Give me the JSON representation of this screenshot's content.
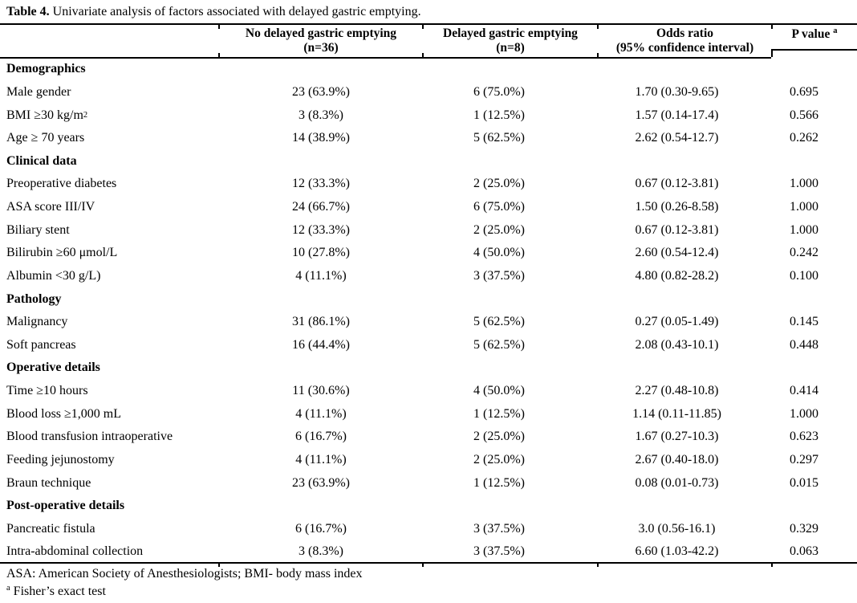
{
  "title": {
    "prefix": "Table 4.",
    "text": " Univariate analysis of factors associated with delayed gastric emptying."
  },
  "table": {
    "columns": [
      {
        "line1": "",
        "line2": ""
      },
      {
        "line1": "No delayed gastric emptying",
        "line2": "(n=36)"
      },
      {
        "line1": "Delayed gastric emptying",
        "line2": "(n=8)"
      },
      {
        "line1": "Odds ratio",
        "line2": "(95% confidence interval)"
      },
      {
        "label": "P value",
        "sup": "a"
      }
    ],
    "rows": [
      {
        "type": "section",
        "label": "Demographics"
      },
      {
        "type": "data",
        "label": "Male gender",
        "no_dge": "23 (63.9%)",
        "dge": "6 (75.0%)",
        "odds_ratio": "1.70 (0.30-9.65)",
        "p_value": "0.695"
      },
      {
        "type": "data",
        "label": "BMI ≥30 kg/m",
        "sup": "2",
        "no_dge": "3 (8.3%)",
        "dge": "1 (12.5%)",
        "odds_ratio": "1.57 (0.14-17.4)",
        "p_value": "0.566"
      },
      {
        "type": "data",
        "label": "Age ≥ 70 years",
        "no_dge": "14 (38.9%)",
        "dge": "5 (62.5%)",
        "odds_ratio": "2.62 (0.54-12.7)",
        "p_value": "0.262"
      },
      {
        "type": "section",
        "label": "Clinical data"
      },
      {
        "type": "data",
        "label": "Preoperative diabetes",
        "no_dge": "12 (33.3%)",
        "dge": "2 (25.0%)",
        "odds_ratio": "0.67 (0.12-3.81)",
        "p_value": "1.000"
      },
      {
        "type": "data",
        "label": "ASA score III/IV",
        "no_dge": "24 (66.7%)",
        "dge": "6 (75.0%)",
        "odds_ratio": "1.50 (0.26-8.58)",
        "p_value": "1.000"
      },
      {
        "type": "data",
        "label": "Biliary stent",
        "no_dge": "12 (33.3%)",
        "dge": "2 (25.0%)",
        "odds_ratio": "0.67 (0.12-3.81)",
        "p_value": "1.000"
      },
      {
        "type": "data",
        "label": "Bilirubin ≥60 μmol/L",
        "no_dge": "10 (27.8%)",
        "dge": "4 (50.0%)",
        "odds_ratio": "2.60 (0.54-12.4)",
        "p_value": "0.242"
      },
      {
        "type": "data",
        "label": "Albumin <30 g/L)",
        "no_dge": "4 (11.1%)",
        "dge": "3 (37.5%)",
        "odds_ratio": "4.80 (0.82-28.2)",
        "p_value": "0.100"
      },
      {
        "type": "section",
        "label": "Pathology"
      },
      {
        "type": "data",
        "label": "Malignancy",
        "no_dge": "31 (86.1%)",
        "dge": "5 (62.5%)",
        "odds_ratio": "0.27 (0.05-1.49)",
        "p_value": "0.145"
      },
      {
        "type": "data",
        "label": "Soft pancreas",
        "no_dge": "16 (44.4%)",
        "dge": "5 (62.5%)",
        "odds_ratio": "2.08 (0.43-10.1)",
        "p_value": "0.448"
      },
      {
        "type": "section",
        "label": "Operative details"
      },
      {
        "type": "data",
        "label": "Time ≥10 hours",
        "no_dge": "11 (30.6%)",
        "dge": "4 (50.0%)",
        "odds_ratio": "2.27 (0.48-10.8)",
        "p_value": "0.414"
      },
      {
        "type": "data",
        "label": "Blood loss ≥1,000 mL",
        "no_dge": "4 (11.1%)",
        "dge": "1 (12.5%)",
        "odds_ratio": "1.14 (0.11-11.85)",
        "p_value": "1.000"
      },
      {
        "type": "data",
        "label": "Blood transfusion intraoperative",
        "no_dge": "6 (16.7%)",
        "dge": "2 (25.0%)",
        "odds_ratio": "1.67 (0.27-10.3)",
        "p_value": "0.623"
      },
      {
        "type": "data",
        "label": "Feeding jejunostomy",
        "no_dge": "4 (11.1%)",
        "dge": "2 (25.0%)",
        "odds_ratio": "2.67 (0.40-18.0)",
        "p_value": "0.297"
      },
      {
        "type": "data",
        "label": "Braun technique",
        "no_dge": "23 (63.9%)",
        "dge": "1 (12.5%)",
        "odds_ratio": "0.08 (0.01-0.73)",
        "p_value": "0.015"
      },
      {
        "type": "section",
        "label": "Post-operative details"
      },
      {
        "type": "data",
        "label": "Pancreatic fistula",
        "no_dge": "6 (16.7%)",
        "dge": "3 (37.5%)",
        "odds_ratio": "3.0 (0.56-16.1)",
        "p_value": "0.329"
      },
      {
        "type": "data",
        "label": "Intra-abdominal collection",
        "no_dge": "3 (8.3%)",
        "dge": "3 (37.5%)",
        "odds_ratio": "6.60 (1.03-42.2)",
        "p_value": "0.063"
      }
    ]
  },
  "footnotes": {
    "abbreviations": "ASA: American Society of Anesthesiologists; BMI- body mass index",
    "fisher_sup": "a",
    "fisher_text": " Fisher’s exact test"
  }
}
